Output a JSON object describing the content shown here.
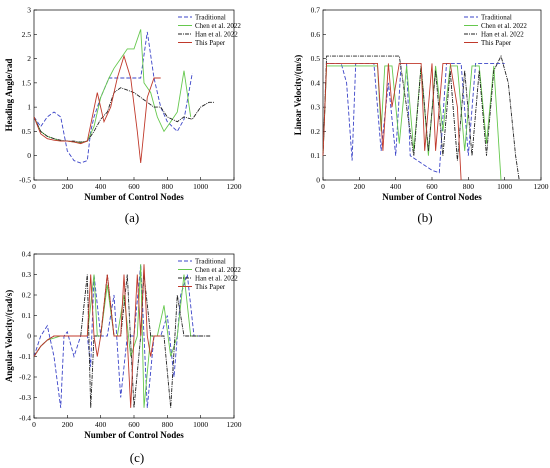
{
  "legend_entries": [
    "Traditional",
    "Chen et al. 2022",
    "Han et al. 2022",
    "This Paper"
  ],
  "series_styles": [
    {
      "name": "Traditional",
      "color": "#3b44c8",
      "dash": "4,2"
    },
    {
      "name": "Chen et al. 2022",
      "color": "#66c84e",
      "dash": ""
    },
    {
      "name": "Han et al. 2022",
      "color": "#222222",
      "dash": "4,1,1,1"
    },
    {
      "name": "This Paper",
      "color": "#c0392b",
      "dash": ""
    }
  ],
  "chart_data": [
    {
      "type": "line",
      "panel_label": "(a)",
      "xlabel": "Number of Control Nodes",
      "ylabel": "Heading Angle/rad",
      "xlim": [
        0,
        1200
      ],
      "ylim": [
        -0.5,
        3
      ],
      "xticks": [
        0,
        200,
        400,
        600,
        800,
        1000,
        1200
      ],
      "yticks": [
        -0.5,
        0,
        0.5,
        1,
        1.5,
        2,
        2.5,
        3
      ],
      "legend_position": "top-right",
      "series": [
        {
          "name": "Traditional",
          "x": [
            0,
            40,
            80,
            120,
            160,
            200,
            240,
            280,
            320,
            340,
            360,
            400,
            450,
            500,
            560,
            600,
            640,
            680,
            720,
            760,
            800,
            860,
            900,
            950
          ],
          "y": [
            0.8,
            0.6,
            0.8,
            0.9,
            0.8,
            0.1,
            -0.1,
            -0.15,
            -0.1,
            0.5,
            0.8,
            1.2,
            1.6,
            1.6,
            1.6,
            1.6,
            1.6,
            2.55,
            1.6,
            1.0,
            0.7,
            0.5,
            0.75,
            1.7
          ]
        },
        {
          "name": "Chen et al. 2022",
          "x": [
            0,
            40,
            80,
            120,
            160,
            200,
            240,
            280,
            320,
            360,
            400,
            450,
            480,
            520,
            560,
            600,
            640,
            660,
            700,
            740,
            780,
            820,
            860,
            900,
            940
          ],
          "y": [
            0.8,
            0.5,
            0.4,
            0.35,
            0.3,
            0.3,
            0.28,
            0.27,
            0.3,
            0.6,
            1.2,
            1.6,
            1.8,
            2.0,
            2.2,
            2.2,
            2.6,
            1.5,
            1.3,
            0.8,
            0.5,
            0.7,
            0.9,
            1.75,
            0.8
          ]
        },
        {
          "name": "Han et al. 2022",
          "x": [
            0,
            40,
            80,
            120,
            160,
            200,
            240,
            280,
            320,
            360,
            400,
            440,
            480,
            520,
            560,
            600,
            640,
            680,
            720,
            760,
            800,
            860,
            900,
            950,
            1000,
            1050,
            1080
          ],
          "y": [
            0.8,
            0.5,
            0.4,
            0.35,
            0.32,
            0.3,
            0.3,
            0.28,
            0.3,
            0.5,
            0.75,
            0.9,
            1.3,
            1.4,
            1.35,
            1.3,
            1.2,
            1.1,
            1.0,
            1.0,
            0.8,
            0.7,
            0.8,
            0.75,
            1.0,
            1.1,
            1.1
          ]
        },
        {
          "name": "This Paper",
          "x": [
            0,
            40,
            80,
            120,
            160,
            200,
            240,
            280,
            320,
            350,
            380,
            420,
            460,
            500,
            540,
            580,
            620,
            640,
            680,
            720,
            760
          ],
          "y": [
            0.8,
            0.45,
            0.35,
            0.32,
            0.3,
            0.3,
            0.28,
            0.25,
            0.3,
            0.8,
            1.3,
            0.7,
            1.0,
            1.6,
            2.05,
            1.6,
            0.5,
            -0.15,
            1.2,
            1.6,
            1.6
          ]
        }
      ]
    },
    {
      "type": "line",
      "panel_label": "(b)",
      "xlabel": "Number of Control Nodes",
      "ylabel": "Linear Velocity/(m/s)",
      "xlim": [
        0,
        1200
      ],
      "ylim": [
        0,
        0.7
      ],
      "xticks": [
        0,
        200,
        400,
        600,
        800,
        1000,
        1200
      ],
      "yticks": [
        0,
        0.1,
        0.2,
        0.3,
        0.4,
        0.5,
        0.6,
        0.7
      ],
      "legend_position": "top-right",
      "series": [
        {
          "name": "Traditional",
          "x": [
            0,
            20,
            60,
            100,
            130,
            160,
            180,
            200,
            240,
            280,
            300,
            320,
            360,
            400,
            430,
            460,
            480,
            520,
            560,
            600,
            640,
            680,
            720,
            760,
            800,
            840,
            880,
            920,
            960,
            1000
          ],
          "y": [
            0.1,
            0.48,
            0.48,
            0.48,
            0.4,
            0.08,
            0.48,
            0.48,
            0.48,
            0.48,
            0.3,
            0.12,
            0.4,
            0.1,
            0.48,
            0.48,
            0.1,
            0.08,
            0.06,
            0.04,
            0.03,
            0.48,
            0.48,
            0.48,
            0.1,
            0.48,
            0.48,
            0.48,
            0.48,
            0.48
          ]
        },
        {
          "name": "Chen et al. 2022",
          "x": [
            0,
            20,
            60,
            100,
            140,
            180,
            220,
            260,
            300,
            320,
            340,
            380,
            420,
            460,
            500,
            540,
            580,
            620,
            660,
            700,
            740,
            780,
            820,
            860,
            900,
            940,
            980
          ],
          "y": [
            0.1,
            0.47,
            0.47,
            0.47,
            0.47,
            0.47,
            0.47,
            0.47,
            0.47,
            0.2,
            0.47,
            0.47,
            0.15,
            0.47,
            0.12,
            0.47,
            0.1,
            0.47,
            0.2,
            0.47,
            0.47,
            0.12,
            0.47,
            0.47,
            0.15,
            0.47,
            0.0
          ]
        },
        {
          "name": "Han et al. 2022",
          "x": [
            0,
            20,
            60,
            100,
            140,
            180,
            220,
            260,
            300,
            340,
            380,
            420,
            460,
            500,
            540,
            580,
            620,
            660,
            700,
            740,
            780,
            820,
            860,
            900,
            940,
            980,
            1020,
            1060,
            1080
          ],
          "y": [
            0.1,
            0.51,
            0.51,
            0.51,
            0.51,
            0.51,
            0.51,
            0.51,
            0.51,
            0.51,
            0.51,
            0.51,
            0.3,
            0.1,
            0.47,
            0.12,
            0.45,
            0.1,
            0.45,
            0.08,
            0.45,
            0.1,
            0.45,
            0.1,
            0.45,
            0.51,
            0.4,
            0.1,
            0.0
          ]
        },
        {
          "name": "This Paper",
          "x": [
            0,
            20,
            60,
            100,
            140,
            180,
            220,
            260,
            300,
            330,
            360,
            380,
            420,
            460,
            500,
            540,
            560,
            600,
            620,
            660,
            700,
            740,
            760
          ],
          "y": [
            0.1,
            0.48,
            0.48,
            0.48,
            0.48,
            0.48,
            0.48,
            0.48,
            0.48,
            0.12,
            0.48,
            0.3,
            0.48,
            0.48,
            0.48,
            0.48,
            0.12,
            0.48,
            0.12,
            0.48,
            0.48,
            0.3,
            0.0
          ]
        }
      ]
    },
    {
      "type": "line",
      "panel_label": "(c)",
      "xlabel": "Number of Control Nodes",
      "ylabel": "Angular Velocity/(rad/s)",
      "xlim": [
        0,
        1200
      ],
      "ylim": [
        -0.4,
        0.4
      ],
      "xticks": [
        0,
        200,
        400,
        600,
        800,
        1000,
        1200
      ],
      "yticks": [
        -0.4,
        -0.3,
        -0.2,
        -0.1,
        0,
        0.1,
        0.2,
        0.3,
        0.4
      ],
      "legend_position": "top-right",
      "series": [
        {
          "name": "Traditional",
          "x": [
            0,
            40,
            80,
            120,
            160,
            180,
            200,
            240,
            280,
            320,
            340,
            360,
            400,
            440,
            480,
            520,
            560,
            600,
            640,
            680,
            720,
            760,
            800,
            840,
            880,
            920,
            960,
            1000
          ],
          "y": [
            -0.1,
            0.0,
            0.05,
            -0.1,
            -0.35,
            0.0,
            0.02,
            -0.1,
            0.0,
            0.0,
            -0.15,
            0.3,
            0.0,
            0.0,
            0.2,
            -0.3,
            0.0,
            0.0,
            0.35,
            -0.35,
            0.0,
            0.0,
            0.1,
            -0.2,
            0.2,
            0.3,
            0.0,
            0.0
          ]
        },
        {
          "name": "Chen et al. 2022",
          "x": [
            0,
            40,
            80,
            120,
            160,
            200,
            240,
            280,
            320,
            360,
            380,
            400,
            440,
            480,
            500,
            540,
            580,
            620,
            640,
            660,
            700,
            740,
            780,
            820,
            860,
            900,
            940,
            980
          ],
          "y": [
            -0.1,
            -0.05,
            -0.02,
            -0.01,
            0.0,
            0.0,
            0.0,
            0.0,
            0.0,
            0.3,
            0.0,
            0.0,
            0.25,
            0.0,
            0.0,
            0.2,
            -0.1,
            0.0,
            0.35,
            -0.35,
            0.0,
            0.0,
            0.15,
            -0.1,
            0.0,
            0.3,
            0.0,
            0.0
          ]
        },
        {
          "name": "Han et al. 2022",
          "x": [
            0,
            40,
            80,
            120,
            160,
            200,
            240,
            280,
            320,
            340,
            360,
            400,
            440,
            480,
            520,
            560,
            600,
            640,
            660,
            700,
            740,
            780,
            820,
            860,
            900,
            940,
            980,
            1020,
            1060
          ],
          "y": [
            -0.1,
            -0.05,
            -0.02,
            0.0,
            0.0,
            0.0,
            0.0,
            0.0,
            0.3,
            -0.35,
            0.0,
            0.0,
            0.3,
            0.0,
            0.0,
            0.3,
            -0.35,
            0.0,
            0.3,
            0.0,
            0.0,
            0.0,
            -0.35,
            0.2,
            0.0,
            0.0,
            0.0,
            0.0,
            0.0
          ]
        },
        {
          "name": "This Paper",
          "x": [
            0,
            40,
            80,
            120,
            160,
            200,
            240,
            280,
            320,
            340,
            360,
            380,
            400,
            440,
            480,
            520,
            540,
            580,
            600,
            620,
            640,
            660,
            680,
            700,
            720,
            760
          ],
          "y": [
            -0.1,
            -0.05,
            -0.02,
            0.0,
            0.0,
            0.0,
            0.0,
            0.0,
            0.0,
            0.3,
            0.0,
            -0.1,
            0.0,
            0.3,
            0.0,
            0.0,
            0.3,
            -0.35,
            0.0,
            0.3,
            0.0,
            0.35,
            0.0,
            -0.1,
            0.0,
            0.0
          ]
        }
      ]
    }
  ]
}
